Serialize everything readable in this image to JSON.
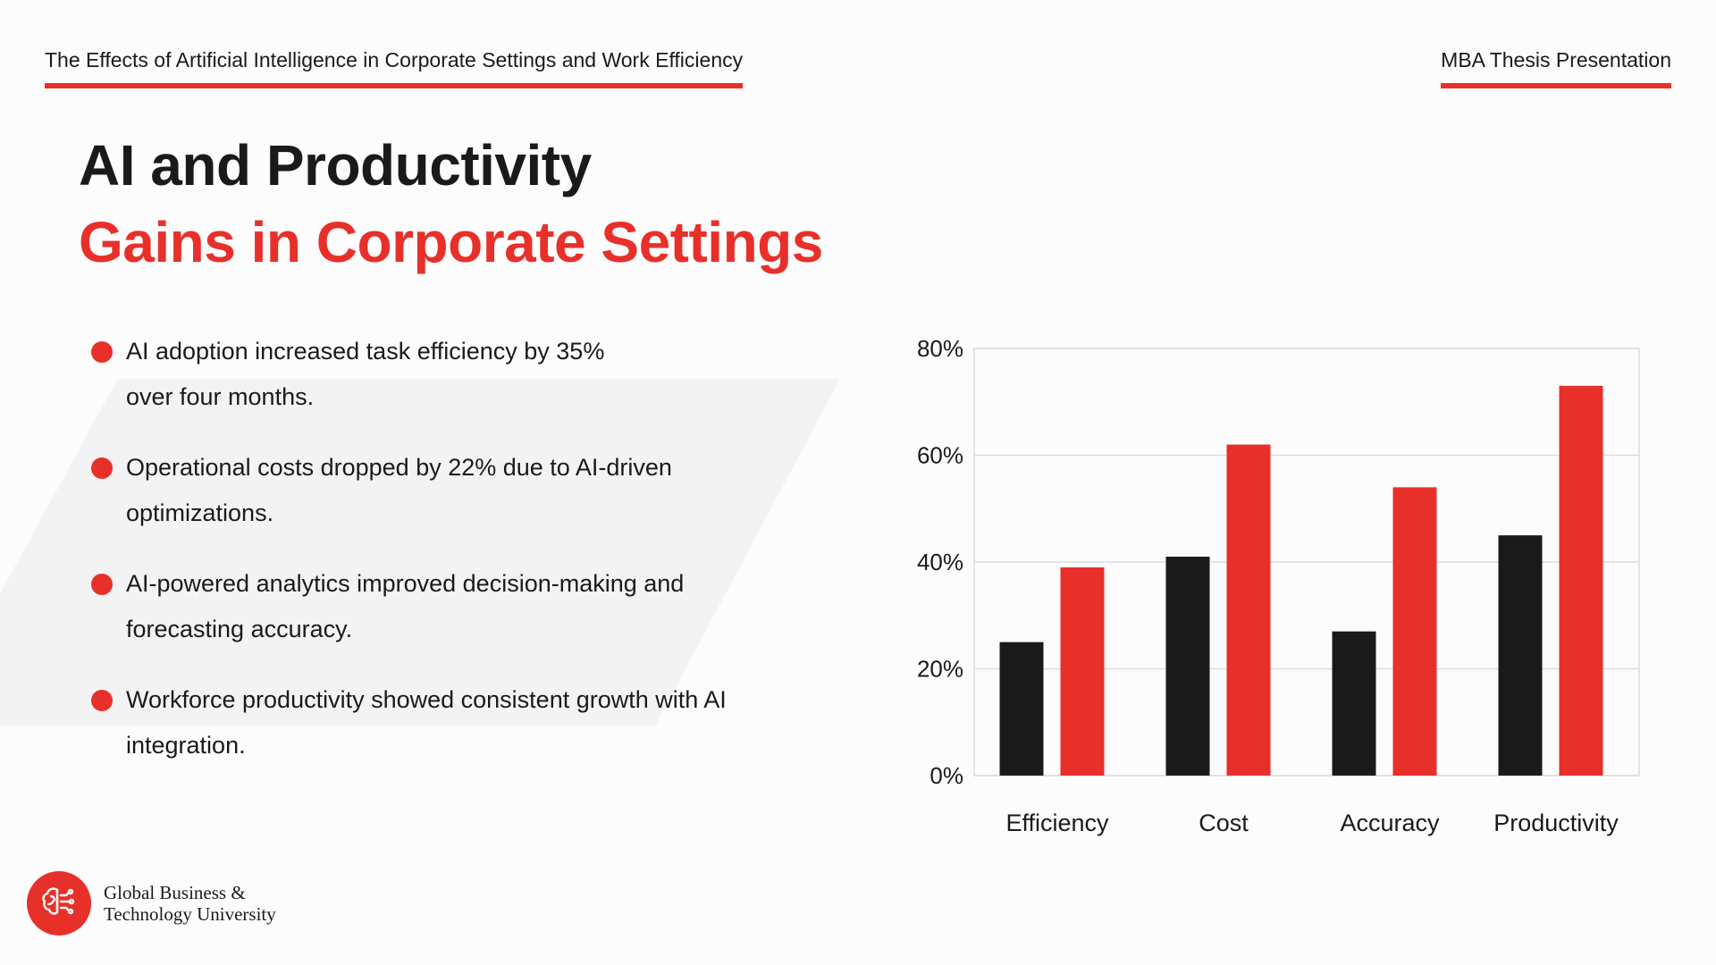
{
  "header": {
    "title": "The Effects of Artificial Intelligence in Corporate Settings and Work Efficiency",
    "right_label": "MBA Thesis Presentation"
  },
  "slide": {
    "title_line1": "AI and Productivity",
    "title_line2": "Gains in Corporate Settings",
    "bullets": [
      "AI adoption increased task efficiency by 35% over four months.",
      "Operational costs dropped by 22% due to AI-driven optimizations.",
      "AI-powered analytics improved decision-making and forecasting accuracy.",
      "Workforce productivity showed consistent growth with AI integration."
    ]
  },
  "footer": {
    "logo_icon": "brain-circuit-icon",
    "org_line1": "Global Business &",
    "org_line2": "Technology University"
  },
  "colors": {
    "accent": "#e8302a",
    "dark": "#1a1a1a",
    "grid": "#dcdce4"
  },
  "chart_data": {
    "type": "bar",
    "categories": [
      "Efficiency",
      "Cost",
      "Accuracy",
      "Productivity"
    ],
    "series": [
      {
        "color": "#1a1a1a",
        "values": [
          25,
          41,
          27,
          45
        ]
      },
      {
        "color": "#e8302a",
        "values": [
          39,
          62,
          54,
          73
        ]
      }
    ],
    "ylim": [
      0,
      80
    ],
    "yticks": [
      0,
      20,
      40,
      60,
      80
    ],
    "ytick_labels": [
      "0%",
      "20%",
      "40%",
      "60%",
      "80%"
    ],
    "grid": true,
    "legend": "none",
    "title": "",
    "xlabel": "",
    "ylabel": ""
  }
}
